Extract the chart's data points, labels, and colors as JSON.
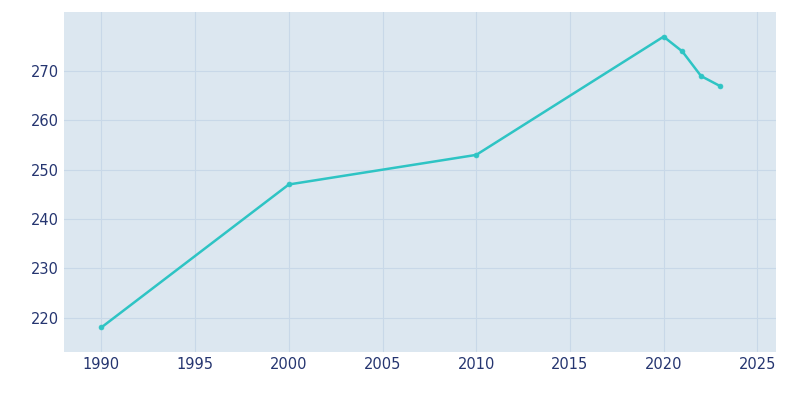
{
  "years": [
    1990,
    2000,
    2010,
    2020,
    2021,
    2022,
    2023
  ],
  "population": [
    218,
    247,
    253,
    277,
    274,
    269,
    267
  ],
  "line_color": "#2ec4c4",
  "marker_color": "#2ec4c4",
  "fig_bg_color": "#ffffff",
  "plot_bg_color": "#dce7f0",
  "grid_color": "#c8d8e8",
  "tick_color": "#253570",
  "xlim": [
    1988,
    2026
  ],
  "ylim": [
    213,
    282
  ],
  "xticks": [
    1990,
    1995,
    2000,
    2005,
    2010,
    2015,
    2020,
    2025
  ],
  "yticks": [
    220,
    230,
    240,
    250,
    260,
    270
  ],
  "linewidth": 1.8,
  "markersize": 3.5
}
